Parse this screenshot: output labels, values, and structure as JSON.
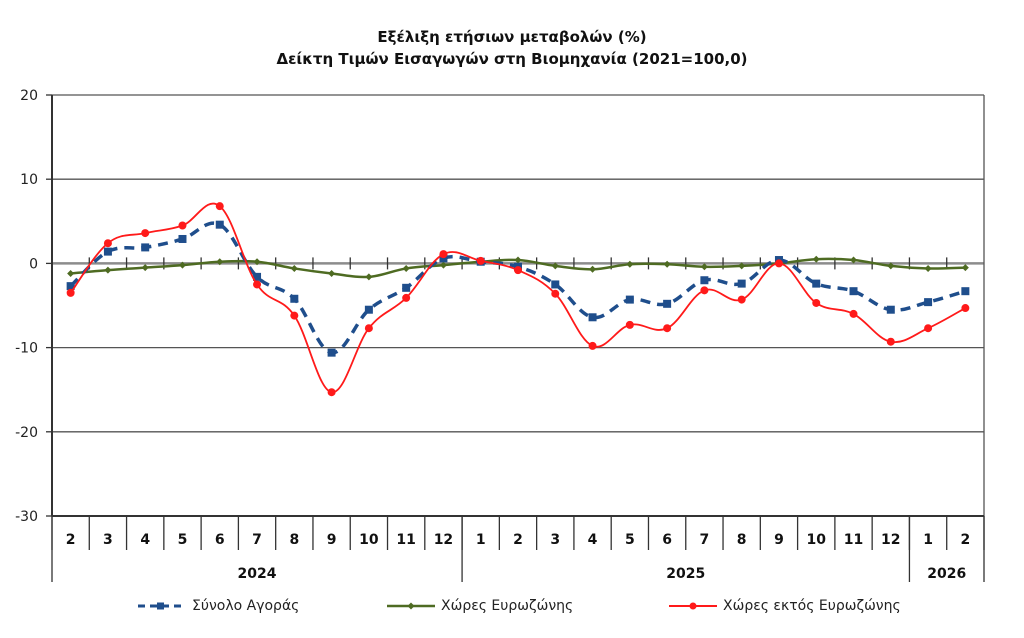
{
  "chart_data": {
    "type": "line",
    "title": "Εξέλιξη ετήσιων μεταβολών (%)",
    "subtitle": "Δείκτη Τιμών Εισαγωγών στη Βιομηχανία (2021=100,0)",
    "xlabel": "",
    "ylabel": "",
    "ylim": [
      -30,
      20
    ],
    "yticks": [
      20,
      10,
      0,
      -10,
      -20,
      -30
    ],
    "grid": true,
    "legend_position": "bottom",
    "categories": [
      "2",
      "3",
      "4",
      "5",
      "6",
      "7",
      "8",
      "9",
      "10",
      "11",
      "12",
      "1",
      "2",
      "3",
      "4",
      "5",
      "6",
      "7",
      "8",
      "9",
      "10",
      "11",
      "12",
      "1",
      "2"
    ],
    "year_groups": [
      {
        "label": "2024",
        "count": 11
      },
      {
        "label": "2025",
        "count": 12
      },
      {
        "label": "2026",
        "count": 2
      }
    ],
    "series": [
      {
        "name": "Σύνολο Αγοράς",
        "color": "#1f4e8c",
        "style": "dashed",
        "marker": "square",
        "values": [
          -2.7,
          1.4,
          1.9,
          2.9,
          4.6,
          -1.6,
          -4.2,
          -10.6,
          -5.5,
          -2.9,
          0.6,
          0.2,
          -0.4,
          -2.5,
          -6.4,
          -4.3,
          -4.8,
          -2.0,
          -2.4,
          0.4,
          -2.4,
          -3.3,
          -5.5,
          -4.6,
          -3.3
        ]
      },
      {
        "name": "Χώρες Ευρωζώνης",
        "color": "#4e6b22",
        "style": "solid",
        "marker": "diamond",
        "values": [
          -1.2,
          -0.8,
          -0.5,
          -0.2,
          0.2,
          0.2,
          -0.6,
          -1.2,
          -1.6,
          -0.6,
          -0.2,
          0.2,
          0.4,
          -0.3,
          -0.7,
          -0.1,
          -0.1,
          -0.4,
          -0.3,
          0.0,
          0.5,
          0.4,
          -0.3,
          -0.6,
          -0.5
        ]
      },
      {
        "name": "Χώρες εκτός Ευρωζώνης",
        "color": "#ff1a1a",
        "style": "solid",
        "marker": "circle",
        "values": [
          -3.5,
          2.4,
          3.6,
          4.5,
          6.8,
          -2.5,
          -6.2,
          -15.3,
          -7.7,
          -4.1,
          1.1,
          0.3,
          -0.8,
          -3.6,
          -9.8,
          -7.3,
          -7.7,
          -3.2,
          -4.3,
          0.0,
          -4.7,
          -6.0,
          -9.3,
          -7.7,
          -5.3
        ]
      }
    ]
  }
}
